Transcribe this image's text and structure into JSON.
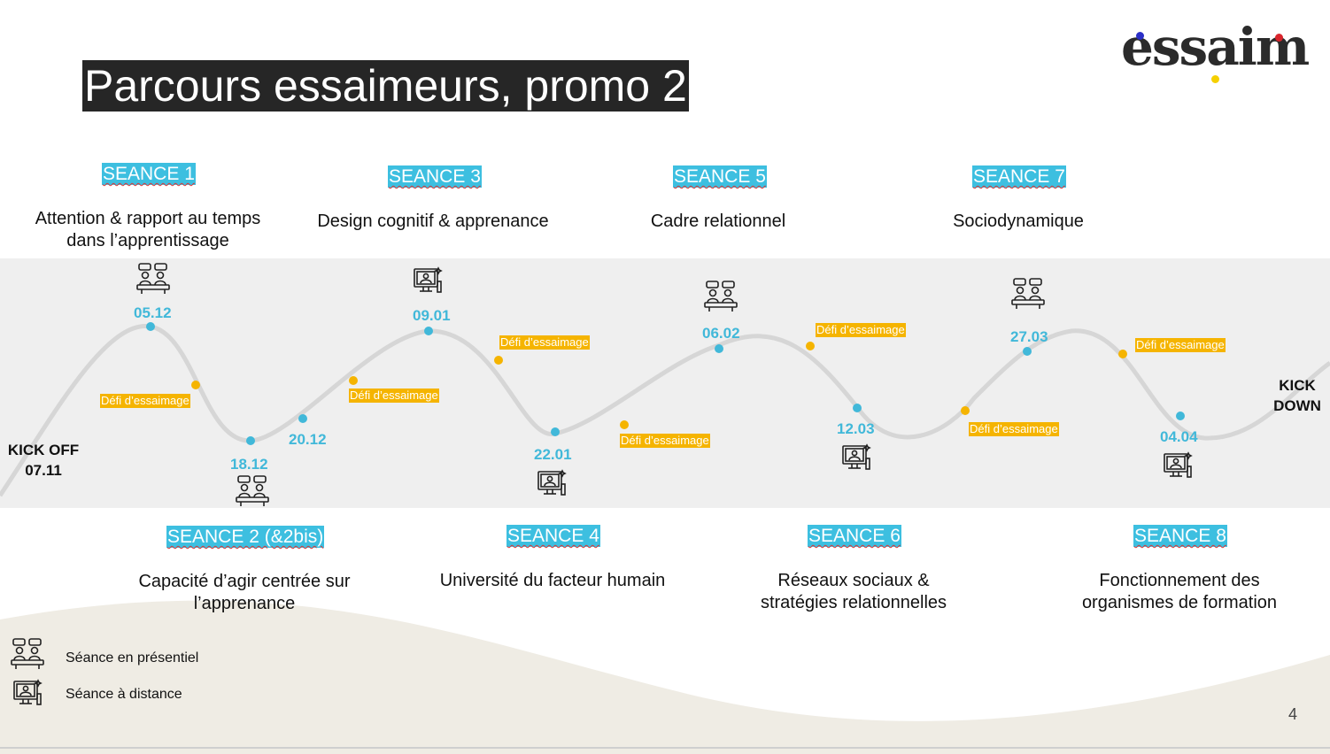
{
  "brand": {
    "logo_text": "essaim",
    "logo_dot_colors": [
      "#2b2fc7",
      "#f5d000",
      "#d9252c"
    ]
  },
  "title": "Parcours essaimeurs, promo 2",
  "page_number": "4",
  "kickoff": {
    "label": "KICK OFF\n07.11"
  },
  "kickdown": {
    "label": "KICK\nDOWN"
  },
  "seances": [
    {
      "label": "SEANCE 1",
      "description": "Attention & rapport au temps\ndans l’apprentissage",
      "date": "05.12",
      "mode": "presentiel-icon"
    },
    {
      "label": "SEANCE 2 (&2bis)",
      "description": "Capacité d’agir centrée sur\nl’apprenance",
      "date": "18.12",
      "mode": "presentiel-icon"
    },
    {
      "label": "SEANCE 3",
      "description": "Design cognitif & apprenance",
      "date": "09.01",
      "mode": "distance-icon"
    },
    {
      "label": "SEANCE 4",
      "description": "Université du facteur humain",
      "date": "22.01",
      "mode": "distance-icon"
    },
    {
      "label": "SEANCE 5",
      "description": "Cadre relationnel",
      "date": "06.02",
      "mode": "presentiel-icon"
    },
    {
      "label": "SEANCE 6",
      "description": "Réseaux sociaux &\nstratégies relationnelles",
      "date": "12.03",
      "mode": "distance-icon"
    },
    {
      "label": "SEANCE 7",
      "description": "Sociodynamique",
      "date": "27.03",
      "mode": "presentiel-icon"
    },
    {
      "label": "SEANCE 8",
      "description": "Fonctionnement des\norganismes de formation",
      "date": "04.04",
      "mode": "distance-icon"
    }
  ],
  "extra_date": "20.12",
  "defi_label": "Défi d’essaimage",
  "legend": {
    "presentiel": "Séance en présentiel",
    "distance": "Séance à distance"
  },
  "colors": {
    "seance_bg": "#3dbfe0",
    "date_text": "#41b8d9",
    "defi_bg": "#f5b400",
    "title_bg": "#262626",
    "band_bg": "#efefef",
    "wave": "#d6d6d6",
    "footer_wave": "#efece4"
  }
}
